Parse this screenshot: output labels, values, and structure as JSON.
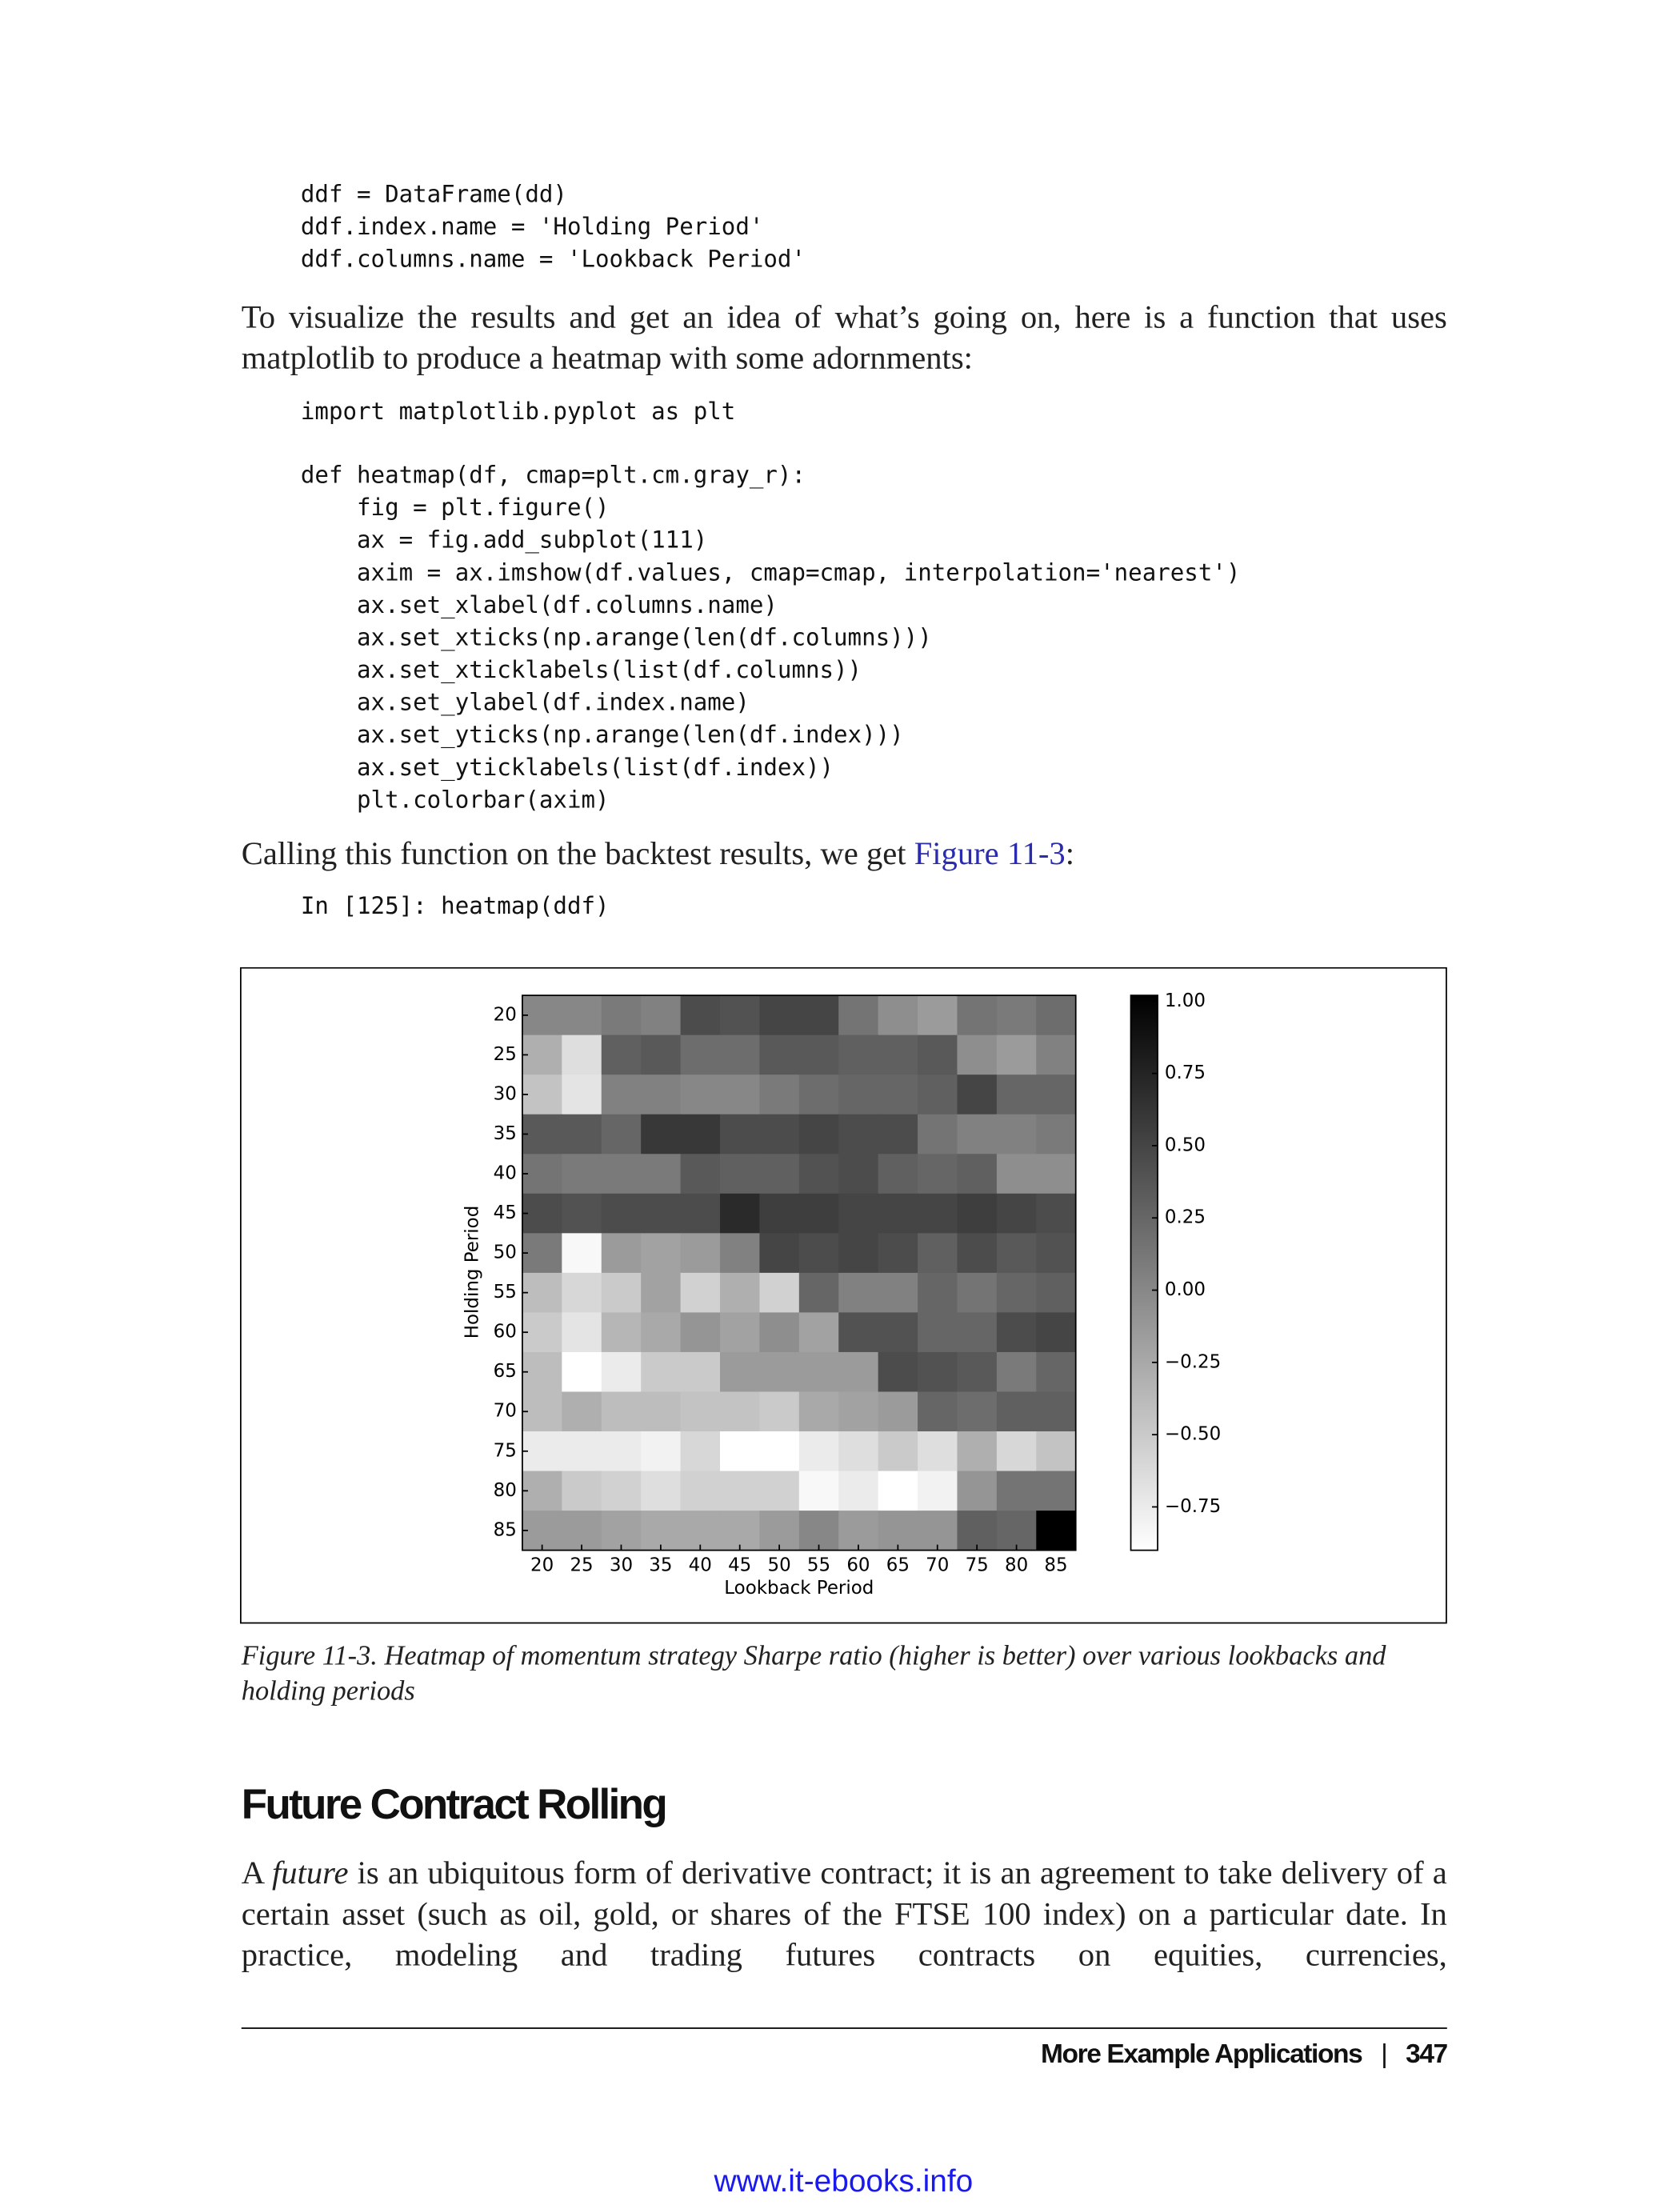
{
  "code1": [
    "ddf = DataFrame(dd)",
    "ddf.index.name = 'Holding Period'",
    "ddf.columns.name = 'Lookback Period'"
  ],
  "para1": "To visualize the results and get an idea of what’s going on, here is a function that uses matplotlib to produce a heatmap with some adornments:",
  "code2": [
    "import matplotlib.pyplot as plt"
  ],
  "code3": [
    "def heatmap(df, cmap=plt.cm.gray_r):",
    "    fig = plt.figure()",
    "    ax = fig.add_subplot(111)",
    "    axim = ax.imshow(df.values, cmap=cmap, interpolation='nearest')",
    "    ax.set_xlabel(df.columns.name)",
    "    ax.set_xticks(np.arange(len(df.columns)))",
    "    ax.set_xticklabels(list(df.columns))",
    "    ax.set_ylabel(df.index.name)",
    "    ax.set_yticks(np.arange(len(df.index)))",
    "    ax.set_yticklabels(list(df.index))",
    "    plt.colorbar(axim)"
  ],
  "para2": {
    "before": "Calling this function on the backtest results, we get ",
    "link": "Figure 11-3",
    "after": ":"
  },
  "code4": [
    "In [125]: heatmap(ddf)"
  ],
  "chart_data": {
    "type": "heatmap",
    "xlabel": "Lookback Period",
    "ylabel": "Holding Period",
    "columns": [
      20,
      25,
      30,
      35,
      40,
      45,
      50,
      55,
      60,
      65,
      70,
      75,
      80,
      85
    ],
    "rows": [
      20,
      25,
      30,
      35,
      40,
      45,
      50,
      55,
      60,
      65,
      70,
      75,
      80,
      85
    ],
    "colormap": "gray_r",
    "clim": [
      -0.9,
      1.02
    ],
    "cticks": [
      {
        "value": -0.75,
        "label": "−0.75"
      },
      {
        "value": -0.5,
        "label": "−0.50"
      },
      {
        "value": -0.25,
        "label": "−0.25"
      },
      {
        "value": 0,
        "label": "0.00"
      },
      {
        "value": 0.25,
        "label": "0.25"
      },
      {
        "value": 0.5,
        "label": "0.50"
      },
      {
        "value": 0.75,
        "label": "0.75"
      },
      {
        "value": 1,
        "label": "1.00"
      }
    ],
    "values": [
      [
        0.0,
        0.0,
        0.1,
        0.05,
        0.45,
        0.4,
        0.5,
        0.5,
        0.15,
        -0.05,
        -0.15,
        0.15,
        0.1,
        0.2
      ],
      [
        -0.3,
        -0.65,
        0.3,
        0.35,
        0.2,
        0.2,
        0.35,
        0.35,
        0.3,
        0.3,
        0.35,
        -0.05,
        -0.15,
        0.05
      ],
      [
        -0.45,
        -0.7,
        0.05,
        0.05,
        0.0,
        0.0,
        0.1,
        0.2,
        0.25,
        0.25,
        0.3,
        0.5,
        0.25,
        0.25
      ],
      [
        0.35,
        0.35,
        0.25,
        0.6,
        0.6,
        0.45,
        0.45,
        0.5,
        0.45,
        0.45,
        0.15,
        0.05,
        0.05,
        0.1
      ],
      [
        0.15,
        0.1,
        0.1,
        0.1,
        0.35,
        0.3,
        0.3,
        0.4,
        0.45,
        0.3,
        0.25,
        0.3,
        -0.05,
        -0.05
      ],
      [
        0.45,
        0.4,
        0.45,
        0.45,
        0.45,
        0.7,
        0.55,
        0.55,
        0.5,
        0.5,
        0.5,
        0.55,
        0.5,
        0.45
      ],
      [
        0.1,
        -0.85,
        -0.15,
        -0.2,
        -0.15,
        0.05,
        0.5,
        0.45,
        0.5,
        0.45,
        0.3,
        0.45,
        0.35,
        0.4
      ],
      [
        -0.4,
        -0.6,
        -0.5,
        -0.2,
        -0.55,
        -0.3,
        -0.55,
        0.25,
        0.05,
        0.05,
        0.25,
        0.15,
        0.25,
        0.3
      ],
      [
        -0.5,
        -0.7,
        -0.35,
        -0.25,
        -0.1,
        -0.2,
        -0.05,
        -0.2,
        0.4,
        0.4,
        0.25,
        0.25,
        0.45,
        0.5
      ],
      [
        -0.4,
        -0.9,
        -0.75,
        -0.5,
        -0.5,
        -0.15,
        -0.15,
        -0.15,
        -0.15,
        0.45,
        0.4,
        0.35,
        0.1,
        0.25
      ],
      [
        -0.4,
        -0.3,
        -0.4,
        -0.4,
        -0.45,
        -0.45,
        -0.5,
        -0.25,
        -0.2,
        -0.15,
        0.25,
        0.2,
        0.3,
        0.3
      ],
      [
        -0.75,
        -0.75,
        -0.75,
        -0.8,
        -0.6,
        -0.9,
        -0.9,
        -0.75,
        -0.65,
        -0.5,
        -0.65,
        -0.3,
        -0.6,
        -0.45
      ],
      [
        -0.3,
        -0.5,
        -0.55,
        -0.65,
        -0.55,
        -0.55,
        -0.55,
        -0.85,
        -0.75,
        -0.9,
        -0.8,
        -0.1,
        0.15,
        0.15
      ],
      [
        -0.15,
        -0.15,
        -0.2,
        -0.25,
        -0.25,
        -0.25,
        -0.15,
        0.0,
        -0.15,
        -0.1,
        -0.1,
        0.3,
        0.25,
        1.02
      ]
    ]
  },
  "caption": "Figure 11-3. Heatmap of momentum strategy Sharpe ratio (higher is better) over various lookbacks and holding periods",
  "heading": "Future Contract Rolling",
  "para3": {
    "before": "A ",
    "emphasis": "future",
    "after": " is an ubiquitous form of derivative contract; it is an agreement to take delivery of a certain asset (such as oil, gold, or shares of the FTSE 100 index) on a particular date. In practice, modeling and trading futures contracts on equities, currencies,"
  },
  "footer": {
    "section": "More Example Applications",
    "page": "347"
  },
  "watermark": "www.it-ebooks.info"
}
